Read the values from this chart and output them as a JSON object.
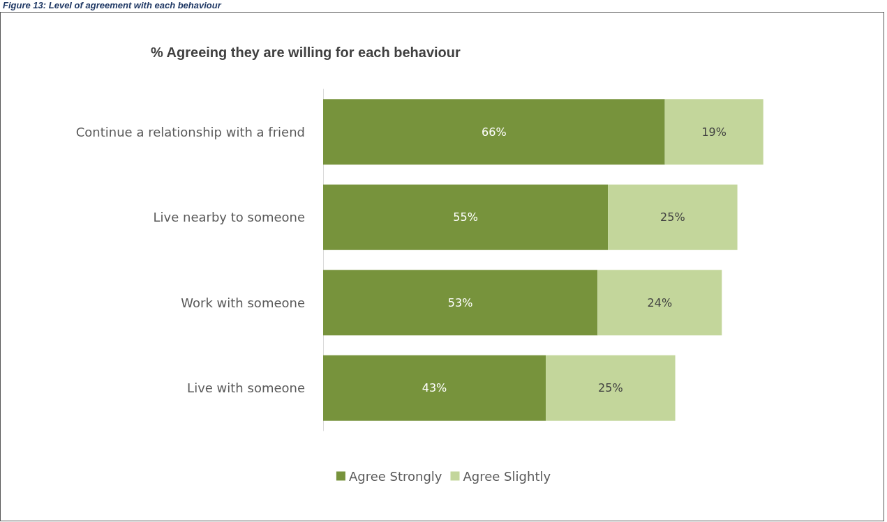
{
  "chart_data": {
    "type": "bar",
    "orientation": "horizontal",
    "stacked": true,
    "title": "% Agreeing they are willing for each behaviour",
    "annotations": [
      "Figure 13: Level of agreement with each behaviour"
    ],
    "categories": [
      "Continue a relationship with a friend",
      "Live nearby to someone",
      "Work with someone",
      "Live with someone"
    ],
    "series": [
      {
        "name": "Agree Strongly",
        "color": "#77933c",
        "values": [
          66,
          55,
          53,
          43
        ],
        "value_labels": [
          "66%",
          "55%",
          "53%",
          "43%"
        ]
      },
      {
        "name": "Agree Slightly",
        "color": "#c3d69b",
        "values": [
          19,
          25,
          24,
          25
        ],
        "value_labels": [
          "19%",
          "25%",
          "24%",
          "25%"
        ]
      }
    ],
    "legend": "bottom",
    "tick_labels": "y"
  }
}
